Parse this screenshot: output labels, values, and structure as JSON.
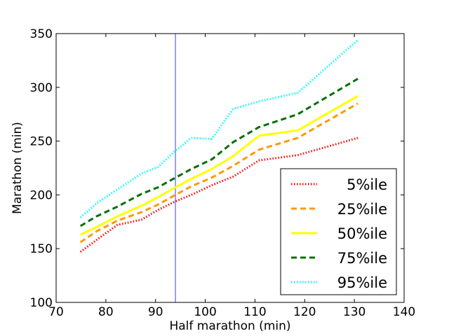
{
  "chart_data": {
    "type": "line",
    "title": "",
    "xlabel": "Half marathon (min)",
    "ylabel": "Marathon (min)",
    "xlim": [
      70,
      140
    ],
    "ylim": [
      100,
      350
    ],
    "xticks": [
      70,
      80,
      90,
      100,
      110,
      120,
      130,
      140
    ],
    "yticks": [
      100,
      150,
      200,
      250,
      300,
      350
    ],
    "grid": false,
    "legend_position": "lower-right",
    "vertical_reference_line": {
      "x": 94,
      "color": "#6a6aff"
    },
    "series": [
      {
        "name": "5%ile",
        "color": "#ff0000",
        "style": "dotted",
        "x": [
          74.9,
          78.1,
          82.3,
          87.2,
          90.5,
          94.0,
          97.2,
          101.3,
          105.6,
          110.8,
          118.6,
          130.7
        ],
        "y": [
          147,
          158,
          172,
          177,
          186,
          194,
          200,
          209,
          217,
          232,
          237,
          253
        ]
      },
      {
        "name": "25%ile",
        "color": "#ff9900",
        "style": "dashed",
        "x": [
          74.9,
          78.1,
          82.3,
          87.2,
          90.5,
          94.0,
          97.2,
          101.3,
          105.6,
          110.8,
          118.6,
          130.7
        ],
        "y": [
          156,
          166,
          176,
          184,
          191,
          200,
          208,
          216,
          227,
          242,
          253,
          285
        ]
      },
      {
        "name": "50%ile",
        "color": "#ffff00",
        "style": "solid",
        "x": [
          74.9,
          78.1,
          82.3,
          87.2,
          90.5,
          94.0,
          97.2,
          101.3,
          105.6,
          110.8,
          118.6,
          130.7
        ],
        "y": [
          163,
          170,
          180,
          190,
          198,
          207,
          215,
          224,
          236,
          255,
          260,
          292
        ]
      },
      {
        "name": "75%ile",
        "color": "#007000",
        "style": "dashed",
        "x": [
          74.9,
          78.1,
          82.3,
          87.2,
          90.5,
          94.0,
          97.2,
          101.3,
          105.6,
          110.8,
          118.6,
          130.7
        ],
        "y": [
          171,
          180,
          189,
          201,
          207,
          216,
          224,
          233,
          249,
          263,
          275,
          308
        ]
      },
      {
        "name": "95%ile",
        "color": "#00ffff",
        "style": "dotted",
        "x": [
          74.9,
          78.1,
          82.3,
          87.2,
          90.5,
          94.0,
          97.2,
          101.3,
          105.6,
          110.8,
          118.6,
          130.7
        ],
        "y": [
          179,
          192,
          205,
          220,
          226,
          241,
          253,
          252,
          280,
          287,
          295,
          344
        ]
      }
    ]
  }
}
